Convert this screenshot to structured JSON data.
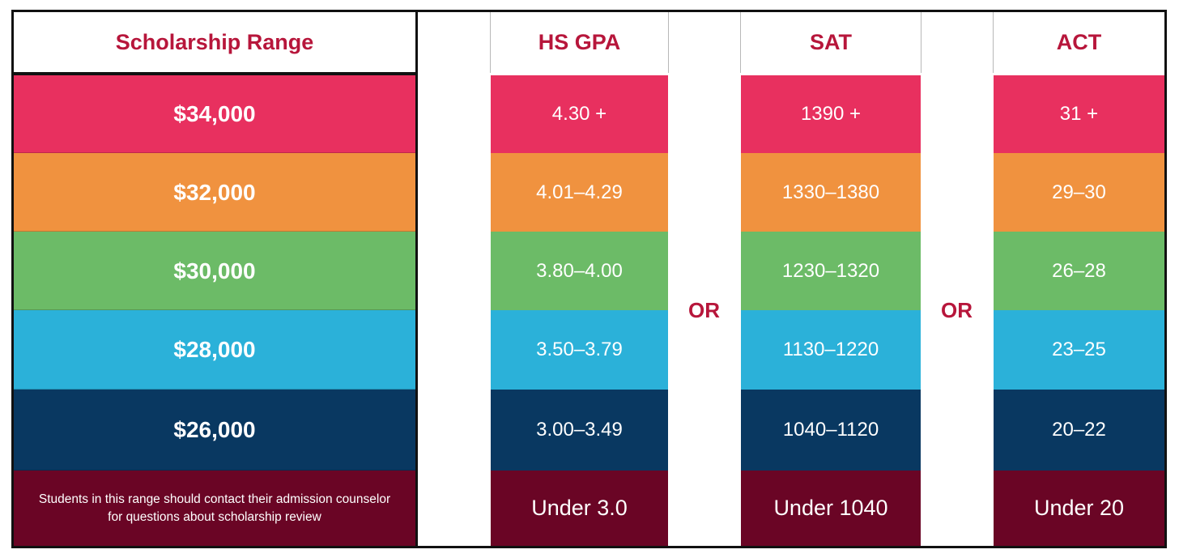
{
  "colors": {
    "header_text": "#b7163b",
    "row_pink": "#e8305f",
    "row_orange": "#f0923f",
    "row_green": "#6cbb67",
    "row_cyan": "#2bb1d9",
    "row_navy": "#093861",
    "row_maroon": "#6a0525"
  },
  "headers": {
    "scholarship": "Scholarship Range",
    "gpa": "HS GPA",
    "sat": "SAT",
    "act": "ACT"
  },
  "separator": {
    "left": "OR",
    "right": "OR"
  },
  "rows": [
    {
      "amount": "$34,000",
      "gpa": "4.30 +",
      "sat": "1390 +",
      "act": "31 +"
    },
    {
      "amount": "$32,000",
      "gpa": "4.01–4.29",
      "sat": "1330–1380",
      "act": "29–30"
    },
    {
      "amount": "$30,000",
      "gpa": "3.80–4.00",
      "sat": "1230–1320",
      "act": "26–28"
    },
    {
      "amount": "$28,000",
      "gpa": "3.50–3.79",
      "sat": "1130–1220",
      "act": "23–25"
    },
    {
      "amount": "$26,000",
      "gpa": "3.00–3.49",
      "sat": "1040–1120",
      "act": "20–22"
    },
    {
      "amount": "Students in this range should contact their admission counselor for questions about scholarship review",
      "gpa": "Under 3.0",
      "sat": "Under 1040",
      "act": "Under 20"
    }
  ]
}
